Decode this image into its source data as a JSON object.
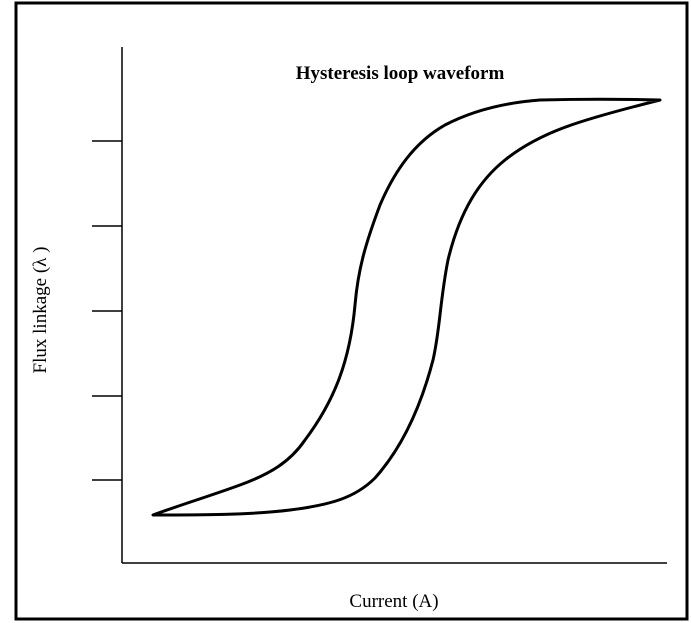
{
  "title": "Hysteresis loop waveform",
  "x_axis_label": "Current (A)",
  "y_axis_label": "Flux linkage (λ )"
}
